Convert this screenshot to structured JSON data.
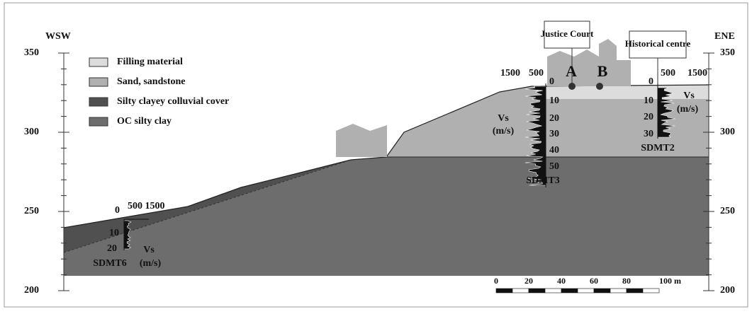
{
  "axes": {
    "left_label": "WSW",
    "right_label": "ENE",
    "left_ticks": [
      "350",
      "300",
      "250",
      "200"
    ],
    "right_ticks": [
      "350",
      "300",
      "250",
      "200"
    ]
  },
  "legend": [
    "Filling material",
    "Sand, sandstone",
    "Silty clayey colluvial cover",
    "OC silty clay"
  ],
  "buildings": [
    "Justice Court",
    "Historical centre"
  ],
  "points": [
    "A",
    "B"
  ],
  "profiles": [
    {
      "name": "SDMT3",
      "vs_ticks": [
        "1500",
        "500"
      ],
      "depths": [
        "0",
        "10",
        "20",
        "30",
        "40",
        "50"
      ],
      "vs_label": [
        "Vs",
        "(m/s)"
      ]
    },
    {
      "name": "SDMT2",
      "vs_ticks": [
        "500",
        "1500"
      ],
      "depths": [
        "0",
        "10",
        "20",
        "30"
      ],
      "vs_label": [
        "Vs",
        "(m/s)"
      ]
    },
    {
      "name": "SDMT6",
      "vs_ticks": [
        "0",
        "500 1500"
      ],
      "depths": [
        "10",
        "20"
      ],
      "vs_label": [
        "Vs",
        "(m/s)"
      ]
    }
  ],
  "scale": [
    "0",
    "20",
    "40",
    "60",
    "80",
    "100 m"
  ]
}
